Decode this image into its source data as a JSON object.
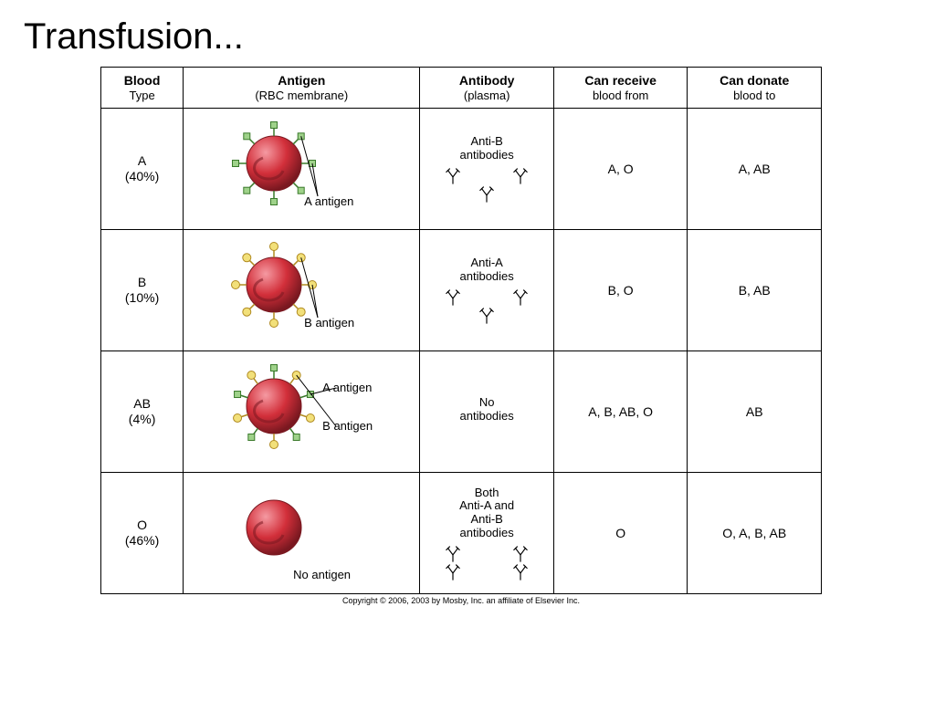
{
  "title": "Transfusion...",
  "copyright": "Copyright © 2006, 2003 by Mosby, Inc. an affiliate of Elsevier Inc.",
  "columns": {
    "type": {
      "main": "Blood",
      "sub": "Type"
    },
    "antigen": {
      "main": "Antigen",
      "sub": "(RBC membrane)"
    },
    "antibody": {
      "main": "Antibody",
      "sub": "(plasma)"
    },
    "receive": {
      "main": "Can receive",
      "sub": "blood from"
    },
    "donate": {
      "main": "Can donate",
      "sub": "blood to"
    }
  },
  "colors": {
    "cell_fill": "#d22f3a",
    "cell_shadow": "#7a1820",
    "cell_highlight": "#f59aa2",
    "antigen_A_fill": "#9fd28a",
    "antigen_A_stroke": "#3a7a2b",
    "antigen_B_fill": "#f2e07a",
    "antigen_B_stroke": "#b08a20",
    "antibody_stroke": "#000000",
    "pointer_stroke": "#000000",
    "border": "#000000"
  },
  "rows": [
    {
      "type": "A",
      "pct": "(40%)",
      "antigen_labels": [
        "A antigen"
      ],
      "antigen_types": [
        "A"
      ],
      "antibody_title": "Anti-B\nantibodies",
      "antibody_count": 3,
      "receive": "A, O",
      "donate": "A, AB"
    },
    {
      "type": "B",
      "pct": "(10%)",
      "antigen_labels": [
        "B antigen"
      ],
      "antigen_types": [
        "B"
      ],
      "antibody_title": "Anti-A\nantibodies",
      "antibody_count": 3,
      "receive": "B, O",
      "donate": "B, AB"
    },
    {
      "type": "AB",
      "pct": "(4%)",
      "antigen_labels": [
        "A antigen",
        "B antigen"
      ],
      "antigen_types": [
        "A",
        "B"
      ],
      "antibody_title": "No\nantibodies",
      "antibody_count": 0,
      "receive": "A, B, AB, O",
      "donate": "AB"
    },
    {
      "type": "O",
      "pct": "(46%)",
      "antigen_labels": [
        "No antigen"
      ],
      "antigen_types": [],
      "antibody_title": "Both\nAnti-A and\nAnti-B\nantibodies",
      "antibody_count": 4,
      "receive": "O",
      "donate": "O, A, B, AB"
    }
  ],
  "rbc": {
    "radius": 30,
    "stem_len": 12,
    "markerA_size": 7,
    "markerB_radius": 4.5,
    "n_markers_single": 8,
    "n_markers_mixed": 10
  },
  "antibody_glyph": {
    "w": 18,
    "h": 18,
    "stroke_w": 1.3
  }
}
